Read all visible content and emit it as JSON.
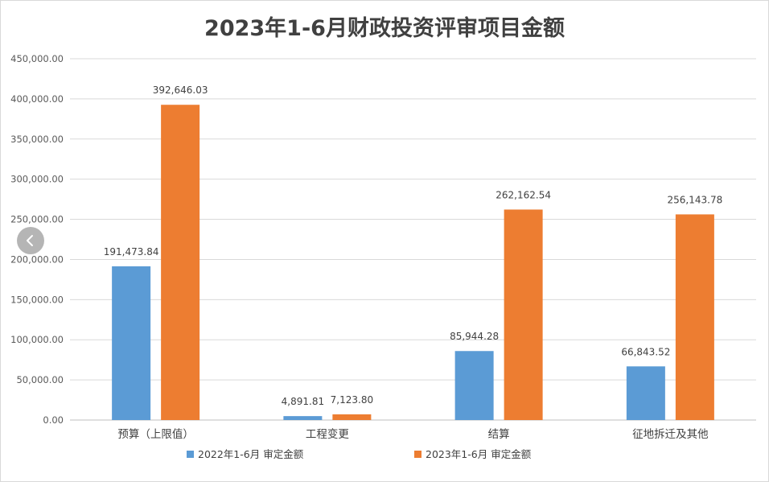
{
  "chart_data": {
    "type": "bar",
    "title": "2023年1-6月财政投资评审项目金额",
    "categories": [
      "预算（上限值）",
      "工程变更",
      "结算",
      "征地拆迁及其他"
    ],
    "series": [
      {
        "name": "2022年1-6月 审定金额",
        "color": "#5b9bd5",
        "values": [
          191473.84,
          4891.81,
          85944.28,
          66843.52
        ],
        "labels": [
          "191,473.84",
          "4,891.81",
          "85,944.28",
          "66,843.52"
        ]
      },
      {
        "name": "2023年1-6月 审定金额",
        "color": "#ed7d31",
        "values": [
          392646.03,
          7123.8,
          262162.54,
          256143.78
        ],
        "labels": [
          "392,646.03",
          "7,123.80",
          "262,162.54",
          "256,143.78"
        ]
      }
    ],
    "ylim": [
      0,
      450000
    ],
    "yticks": [
      0,
      50000,
      100000,
      150000,
      200000,
      250000,
      300000,
      350000,
      400000,
      450000
    ],
    "ytick_labels": [
      "0.00",
      "50,000.00",
      "100,000.00",
      "150,000.00",
      "200,000.00",
      "250,000.00",
      "300,000.00",
      "350,000.00",
      "400,000.00",
      "450,000.00"
    ],
    "xlabel": "",
    "ylabel": "",
    "grid": true,
    "legend": "bottom"
  },
  "nav": {
    "prev_icon": "chevron-left-icon"
  }
}
